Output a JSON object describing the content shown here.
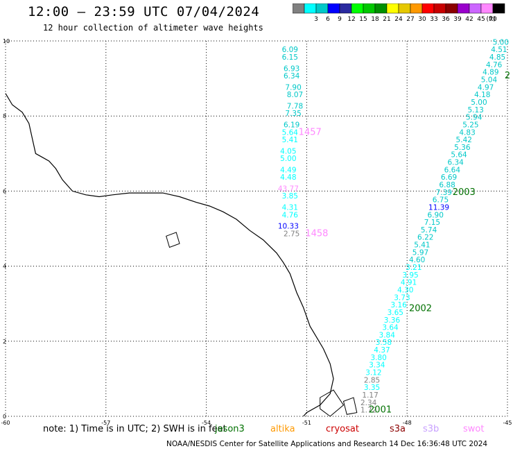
{
  "title": "12:00 – 23:59 UTC 07/04/2024",
  "subtitle": "12 hour collection of altimeter wave heights",
  "legend": {
    "unit": "(ft)",
    "bins": [
      {
        "label": "",
        "color": "#808080"
      },
      {
        "label": "3",
        "color": "#00ffff"
      },
      {
        "label": "6",
        "color": "#00c8c8"
      },
      {
        "label": "9",
        "color": "#0000ff"
      },
      {
        "label": "12",
        "color": "#2a2aa0"
      },
      {
        "label": "15",
        "color": "#00ff00"
      },
      {
        "label": "18",
        "color": "#00c800"
      },
      {
        "label": "21",
        "color": "#009000"
      },
      {
        "label": "24",
        "color": "#ffff00"
      },
      {
        "label": "27",
        "color": "#e6c800"
      },
      {
        "label": "30",
        "color": "#ff9900"
      },
      {
        "label": "33",
        "color": "#ff0000"
      },
      {
        "label": "36",
        "color": "#c80000"
      },
      {
        "label": "39",
        "color": "#8b0000"
      },
      {
        "label": "42",
        "color": "#9900cc"
      },
      {
        "label": "45",
        "color": "#cc66ff"
      },
      {
        "label": "70",
        "color": "#ff88ff"
      },
      {
        "label": "",
        "color": "#000000"
      }
    ]
  },
  "axes": {
    "x_ticks": [
      "-60",
      "-57",
      "-54",
      "-51",
      "-48",
      "-45"
    ],
    "y_ticks": [
      "10",
      "8",
      "6",
      "4",
      "2",
      "0"
    ],
    "xlim": [
      -60,
      -45
    ],
    "ylim": [
      0,
      10
    ]
  },
  "tracks": [
    {
      "name": "track-1457",
      "points": [
        {
          "lon": -51.5,
          "lat": 9.7,
          "v": "6.09",
          "c": "#00c8c8"
        },
        {
          "lon": -51.5,
          "lat": 9.5,
          "v": "6.15",
          "c": "#00c8c8"
        },
        {
          "lon": -51.45,
          "lat": 9.2,
          "v": "6.93",
          "c": "#00c8c8"
        },
        {
          "lon": -51.45,
          "lat": 9.0,
          "v": "6.34",
          "c": "#00c8c8"
        },
        {
          "lon": -51.4,
          "lat": 8.7,
          "v": "7.90",
          "c": "#00c8c8"
        },
        {
          "lon": -51.35,
          "lat": 8.5,
          "v": "8.07",
          "c": "#00c8c8"
        },
        {
          "lon": -51.35,
          "lat": 8.2,
          "v": "7.78",
          "c": "#00c8c8"
        },
        {
          "lon": -51.4,
          "lat": 8.0,
          "v": "7.35",
          "c": "#00c8c8"
        },
        {
          "lon": -51.45,
          "lat": 7.7,
          "v": "6.19",
          "c": "#00c8c8"
        },
        {
          "lon": -51.5,
          "lat": 7.5,
          "v": "5.64",
          "c": "#00ffff"
        },
        {
          "lon": -51.5,
          "lat": 7.3,
          "v": "5.41",
          "c": "#00ffff"
        },
        {
          "lon": -51.55,
          "lat": 7.0,
          "v": "4.05",
          "c": "#00ffff"
        },
        {
          "lon": -51.55,
          "lat": 6.8,
          "v": "5.00",
          "c": "#00ffff"
        },
        {
          "lon": -51.55,
          "lat": 6.5,
          "v": "4.49",
          "c": "#00ffff"
        },
        {
          "lon": -51.55,
          "lat": 6.3,
          "v": "4.48",
          "c": "#00ffff"
        },
        {
          "lon": -51.55,
          "lat": 6.0,
          "v": "43.77",
          "c": "#ff88ff"
        },
        {
          "lon": -51.5,
          "lat": 5.8,
          "v": "3.85",
          "c": "#00ffff"
        },
        {
          "lon": -51.5,
          "lat": 5.5,
          "v": "4.31",
          "c": "#00ffff"
        },
        {
          "lon": -51.5,
          "lat": 5.3,
          "v": "4.76",
          "c": "#00ffff"
        },
        {
          "lon": -51.55,
          "lat": 5.0,
          "v": "10.33",
          "c": "#0000ff"
        },
        {
          "lon": -51.45,
          "lat": 4.8,
          "v": "2.75",
          "c": "#808080"
        }
      ],
      "time_labels": [
        {
          "lon": -50.9,
          "lat": 7.5,
          "text": "1457",
          "c": "#ff88ff"
        },
        {
          "lon": -50.7,
          "lat": 4.8,
          "text": "1458",
          "c": "#ff88ff"
        }
      ]
    },
    {
      "name": "track-2001",
      "points": [
        {
          "lon": -45.2,
          "lat": 9.9,
          "v": "5.00",
          "c": "#00c8c8"
        },
        {
          "lon": -45.25,
          "lat": 9.7,
          "v": "4.51",
          "c": "#00c8c8"
        },
        {
          "lon": -45.3,
          "lat": 9.5,
          "v": "4.85",
          "c": "#00c8c8"
        },
        {
          "lon": -45.4,
          "lat": 9.3,
          "v": "4.76",
          "c": "#00c8c8"
        },
        {
          "lon": -45.5,
          "lat": 9.1,
          "v": "4.89",
          "c": "#00c8c8"
        },
        {
          "lon": -45.55,
          "lat": 8.9,
          "v": "5.04",
          "c": "#00c8c8"
        },
        {
          "lon": -45.65,
          "lat": 8.7,
          "v": "4.97",
          "c": "#00c8c8"
        },
        {
          "lon": -45.75,
          "lat": 8.5,
          "v": "4.18",
          "c": "#00c8c8"
        },
        {
          "lon": -45.85,
          "lat": 8.3,
          "v": "5.00",
          "c": "#00c8c8"
        },
        {
          "lon": -45.95,
          "lat": 8.1,
          "v": "5.13",
          "c": "#00c8c8"
        },
        {
          "lon": -46.0,
          "lat": 7.9,
          "v": "5.94",
          "c": "#00c8c8"
        },
        {
          "lon": -46.1,
          "lat": 7.7,
          "v": "5.25",
          "c": "#00c8c8"
        },
        {
          "lon": -46.2,
          "lat": 7.5,
          "v": "4.83",
          "c": "#00c8c8"
        },
        {
          "lon": -46.3,
          "lat": 7.3,
          "v": "5.42",
          "c": "#00c8c8"
        },
        {
          "lon": -46.35,
          "lat": 7.1,
          "v": "5.36",
          "c": "#00c8c8"
        },
        {
          "lon": -46.45,
          "lat": 6.9,
          "v": "5.64",
          "c": "#00c8c8"
        },
        {
          "lon": -46.55,
          "lat": 6.7,
          "v": "6.34",
          "c": "#00c8c8"
        },
        {
          "lon": -46.65,
          "lat": 6.5,
          "v": "6.64",
          "c": "#00c8c8"
        },
        {
          "lon": -46.75,
          "lat": 6.3,
          "v": "6.69",
          "c": "#00c8c8"
        },
        {
          "lon": -46.8,
          "lat": 6.1,
          "v": "6.88",
          "c": "#00c8c8"
        },
        {
          "lon": -46.9,
          "lat": 5.9,
          "v": "7.39",
          "c": "#00c8c8"
        },
        {
          "lon": -47.0,
          "lat": 5.7,
          "v": "6.75",
          "c": "#00c8c8"
        },
        {
          "lon": -47.05,
          "lat": 5.5,
          "v": "11.39",
          "c": "#0000ff"
        },
        {
          "lon": -47.15,
          "lat": 5.3,
          "v": "6.90",
          "c": "#00c8c8"
        },
        {
          "lon": -47.25,
          "lat": 5.1,
          "v": "7.15",
          "c": "#00c8c8"
        },
        {
          "lon": -47.35,
          "lat": 4.9,
          "v": "5.74",
          "c": "#00c8c8"
        },
        {
          "lon": -47.45,
          "lat": 4.7,
          "v": "6.22",
          "c": "#00c8c8"
        },
        {
          "lon": -47.55,
          "lat": 4.5,
          "v": "5.41",
          "c": "#00c8c8"
        },
        {
          "lon": -47.6,
          "lat": 4.3,
          "v": "5.97",
          "c": "#00c8c8"
        },
        {
          "lon": -47.7,
          "lat": 4.1,
          "v": "4.60",
          "c": "#00c8c8"
        },
        {
          "lon": -47.8,
          "lat": 3.9,
          "v": "3.21",
          "c": "#00ffff"
        },
        {
          "lon": -47.9,
          "lat": 3.7,
          "v": "3.95",
          "c": "#00ffff"
        },
        {
          "lon": -47.95,
          "lat": 3.5,
          "v": "4.91",
          "c": "#00ffff"
        },
        {
          "lon": -48.05,
          "lat": 3.3,
          "v": "4.30",
          "c": "#00ffff"
        },
        {
          "lon": -48.15,
          "lat": 3.1,
          "v": "3.73",
          "c": "#00ffff"
        },
        {
          "lon": -48.25,
          "lat": 2.9,
          "v": "3.16",
          "c": "#00ffff"
        },
        {
          "lon": -48.35,
          "lat": 2.7,
          "v": "3.65",
          "c": "#00ffff"
        },
        {
          "lon": -48.45,
          "lat": 2.5,
          "v": "3.36",
          "c": "#00ffff"
        },
        {
          "lon": -48.5,
          "lat": 2.3,
          "v": "3.64",
          "c": "#00ffff"
        },
        {
          "lon": -48.6,
          "lat": 2.1,
          "v": "3.84",
          "c": "#00ffff"
        },
        {
          "lon": -48.7,
          "lat": 1.9,
          "v": "3.58",
          "c": "#00ffff"
        },
        {
          "lon": -48.75,
          "lat": 1.7,
          "v": "4.37",
          "c": "#00ffff"
        },
        {
          "lon": -48.85,
          "lat": 1.5,
          "v": "3.80",
          "c": "#00ffff"
        },
        {
          "lon": -48.9,
          "lat": 1.3,
          "v": "3.34",
          "c": "#00ffff"
        },
        {
          "lon": -49.0,
          "lat": 1.1,
          "v": "3.12",
          "c": "#00ffff"
        },
        {
          "lon": -49.05,
          "lat": 0.9,
          "v": "2.85",
          "c": "#808080"
        },
        {
          "lon": -49.05,
          "lat": 0.7,
          "v": "3.35",
          "c": "#00ffff"
        },
        {
          "lon": -49.1,
          "lat": 0.5,
          "v": "1.17",
          "c": "#808080"
        },
        {
          "lon": -49.15,
          "lat": 0.3,
          "v": "2.34",
          "c": "#808080"
        },
        {
          "lon": -49.15,
          "lat": 0.1,
          "v": "1.72",
          "c": "#808080"
        }
      ],
      "time_labels": [
        {
          "lon": -45.0,
          "lat": 9.0,
          "text": "2",
          "c": "#007000"
        },
        {
          "lon": -46.3,
          "lat": 5.9,
          "text": "2003",
          "c": "#007000"
        },
        {
          "lon": -47.6,
          "lat": 2.8,
          "text": "2002",
          "c": "#007000"
        },
        {
          "lon": -48.8,
          "lat": 0.1,
          "text": "2001",
          "c": "#007000"
        }
      ]
    }
  ],
  "footer": {
    "note": "note:  1) Time is in UTC; 2) SWH is in feet",
    "satellites": [
      {
        "name": "jason3",
        "color": "#007000"
      },
      {
        "name": "altika",
        "color": "#ff9900"
      },
      {
        "name": "cryosat",
        "color": "#cc0000"
      },
      {
        "name": "s3a",
        "color": "#8b0000"
      },
      {
        "name": "s3b",
        "color": "#c8a0ff"
      },
      {
        "name": "swot",
        "color": "#ff88ff"
      }
    ],
    "credit": "NOAA/NESDIS Center for Satellite Applications and Research    14 Dec 16:36:48 UTC 2024"
  }
}
